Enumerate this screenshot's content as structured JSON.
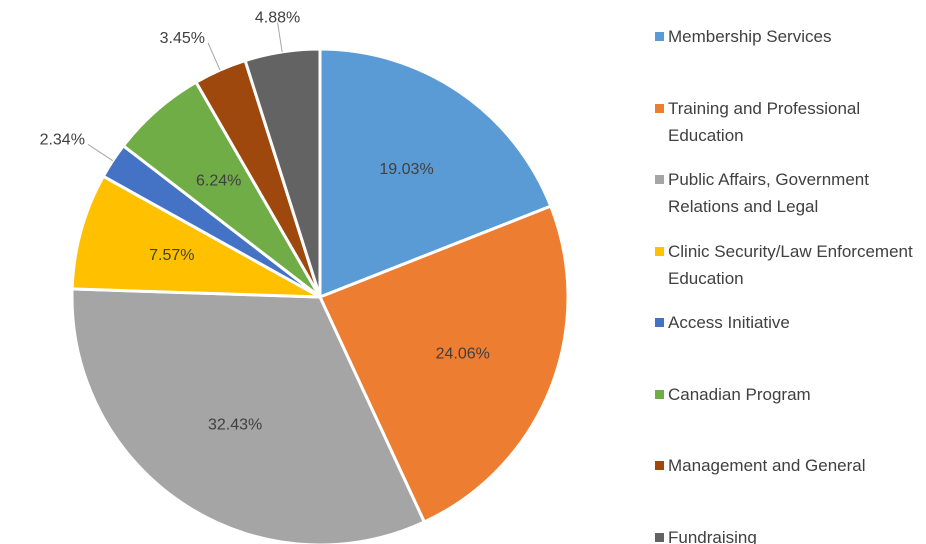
{
  "chart_data": {
    "type": "pie",
    "categories": [
      "Membership Services",
      "Training and Professional Education",
      "Public Affairs, Government Relations and Legal",
      "Clinic Security/Law Enforcement Education",
      "Access Initiative",
      "Canadian Program",
      "Management and General",
      "Fundraising"
    ],
    "values": [
      19.03,
      24.06,
      32.43,
      7.57,
      2.34,
      6.24,
      3.45,
      4.88
    ],
    "value_labels": [
      "19.03%",
      "24.06%",
      "32.43%",
      "7.57%",
      "2.34%",
      "6.24%",
      "3.45%",
      "4.88%"
    ],
    "colors": [
      "#5b9bd5",
      "#ed7d31",
      "#a5a5a5",
      "#ffc000",
      "#4472c4",
      "#70ad47",
      "#9e480e",
      "#636363"
    ],
    "legend": "right"
  }
}
